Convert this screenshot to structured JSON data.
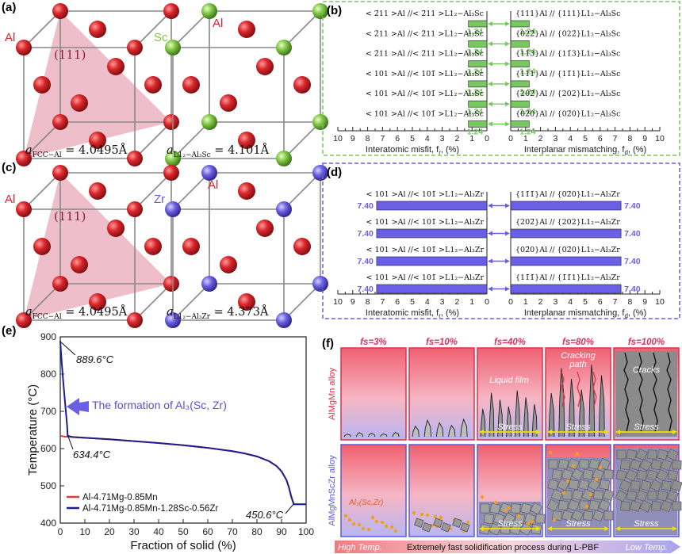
{
  "panels": {
    "a": "(a)",
    "b": "(b)",
    "c": "(c)",
    "d": "(d)",
    "e": "(e)",
    "f": "(f)"
  },
  "crystals": {
    "plane": "(111)",
    "al_label": "Al",
    "sc_label": "Sc",
    "zr_label": "Zr",
    "colors": {
      "al": "#d9262b",
      "sc": "#7ec742",
      "zr": "#6b5fe0",
      "plane": "#e8a9b8"
    },
    "a_lattice": "a",
    "a_sub_al": "FCC−Al",
    "a_val_al": " = 4.0495Å",
    "a_sub_sc": "L1₂−Al₃Sc",
    "a_val_sc": " = 4.101Å",
    "a_sub_zr": "L1₂−Al₃Zr",
    "a_val_zr": " = 4.373Å"
  },
  "misfit_b": {
    "color": "#77c85e",
    "rows": [
      {
        "left": "< 2̄11 >Al //< 2̄11 >L1₂−Al₃Sc",
        "right": "{111}Al // {111}L1₂−Al₃Sc",
        "lval": "1.24",
        "rval": "1.24"
      },
      {
        "left": "< 2̄11 >Al //< 2̄11 >L1₂−Al₃Sc",
        "right": "{022̄}Al // {022̄}L1₂−Al₃Sc",
        "lval": "1.24",
        "rval": "1.24"
      },
      {
        "left": "< 2̄11 >Al //< 2̄11 >L1₂−Al₃Sc",
        "right": "{11̄3}Al // {11̄3}L1₂−Al₃Sc",
        "lval": "1.24",
        "rval": "1.24"
      },
      {
        "left": "< 101 >Al //< 101̄ >L1₂−Al₃Sc",
        "right": "{11̄1}Al // {11̄1}L1₂−Al₃Sc",
        "lval": "1.24",
        "rval": "1.24"
      },
      {
        "left": "< 101 >Al //< 101̄ >L1₂−Al₃Sc",
        "right": "{202̄}Al // {202}L1₂−Al₃Sc",
        "lval": "1.24",
        "rval": "1.24"
      },
      {
        "left": "< 101 >Al //< 101̄ >L1₂−Al₃Sc",
        "right": "{02̄0}Al // {02̄0}L1₂−Al₃Sc",
        "lval": "1.24",
        "rval": "1.24"
      }
    ],
    "left_ticks": [
      "10",
      "9",
      "8",
      "7",
      "6",
      "5",
      "4",
      "3",
      "2",
      "1",
      "0"
    ],
    "right_ticks": [
      "0",
      "1",
      "2",
      "3",
      "4",
      "5",
      "6",
      "7",
      "8",
      "9",
      "10"
    ],
    "left_axis_label": "Interatomic misfit, f",
    "left_axis_sub": "r",
    "right_axis_label": "Interplanar mismatching, f",
    "right_axis_sub": "d",
    "unit": ", (%)"
  },
  "misfit_d": {
    "color": "#6a5fe6",
    "rows": [
      {
        "left": "< 101 >Al //< 101̄ >L1₂−Al₃Zr",
        "right": "{11̄1̄}Al // {02̄0}L1₂−Al₃Zr",
        "lval": "7.40",
        "rval": "7.40"
      },
      {
        "left": "< 101 >Al //< 101̄ >L1₂−Al₃Zr",
        "right": "{202̄}Al // {202}L1₂−Al₃Zr",
        "lval": "7.40",
        "rval": "7.40"
      },
      {
        "left": "< 101 >Al //< 101̄ >L1₂−Al₃Zr",
        "right": "{02̄0}Al // {02̄0}L1₂−Al₃Zr",
        "lval": "7.40",
        "rval": "7.40"
      },
      {
        "left": "< 101 >Al //< 101̄ >L1₂−Al₃Zr",
        "right": "{11̄1̄}Al // {1̄1̄1}L1₂−Al₃Zr",
        "lval": "7.40",
        "rval": "7.40"
      }
    ]
  },
  "chart_data": {
    "type": "line",
    "xlabel": "Fraction of solid (%)",
    "ylabel": "Temperature (°C)",
    "xlim": [
      0,
      100
    ],
    "ylim": [
      400,
      900
    ],
    "xticks": [
      "0",
      "10",
      "20",
      "30",
      "40",
      "50",
      "60",
      "70",
      "80",
      "90",
      "100"
    ],
    "yticks": [
      "400",
      "500",
      "600",
      "700",
      "800",
      "900"
    ],
    "series": [
      {
        "name": "Al-4.71Mg-0.85Mn",
        "color": "#e23a2d",
        "x": [
          0,
          1,
          2,
          5,
          10,
          20,
          30,
          40,
          50,
          60,
          70,
          75,
          80,
          85,
          88,
          90,
          92,
          93,
          94,
          95,
          100
        ],
        "y": [
          634.4,
          633,
          632,
          631,
          629,
          625,
          620,
          615,
          609,
          602,
          593,
          587,
          579,
          566,
          553,
          539,
          516,
          496,
          470,
          450.6,
          450.6
        ]
      },
      {
        "name": "Al-4.71Mg-0.85Mn-1.28Sc-0.56Zr",
        "color": "#1c1f8c",
        "x": [
          0,
          0.3,
          0.6,
          1.2,
          2,
          2.8,
          3,
          5,
          10,
          20,
          30,
          40,
          50,
          60,
          70,
          75,
          80,
          85,
          88,
          90,
          92,
          93,
          94,
          95,
          100
        ],
        "y": [
          889.6,
          860,
          830,
          780,
          720,
          660,
          634.4,
          631,
          629,
          625,
          620,
          615,
          609,
          602,
          593,
          587,
          579,
          566,
          553,
          539,
          516,
          496,
          470,
          450.6,
          450.6
        ]
      }
    ],
    "annotations": [
      {
        "text": "889.6°C"
      },
      {
        "text": "634.4°C"
      },
      {
        "text": "450.6°C"
      },
      {
        "text": "The formation of Al₃(Sc, Zr)"
      }
    ],
    "legend": "bottom-left"
  },
  "solidification": {
    "columns": [
      "fs=3%",
      "fs=10%",
      "fs=40%",
      "fs=80%",
      "fs=100%"
    ],
    "row1_label": "AlMgMn alloy",
    "row2_label": "AlMgMnScZr alloy",
    "liquid_film": "Liquid film",
    "cracking_path": "Cracking path",
    "cracks": "Cracks",
    "stress": "Stress",
    "particles": "Al₃(Sc,Zr)",
    "high_temp": "High Temp.",
    "low_temp": "Low Temp.",
    "bottom_text": "Extremely fast solidification process during L-PBF"
  }
}
